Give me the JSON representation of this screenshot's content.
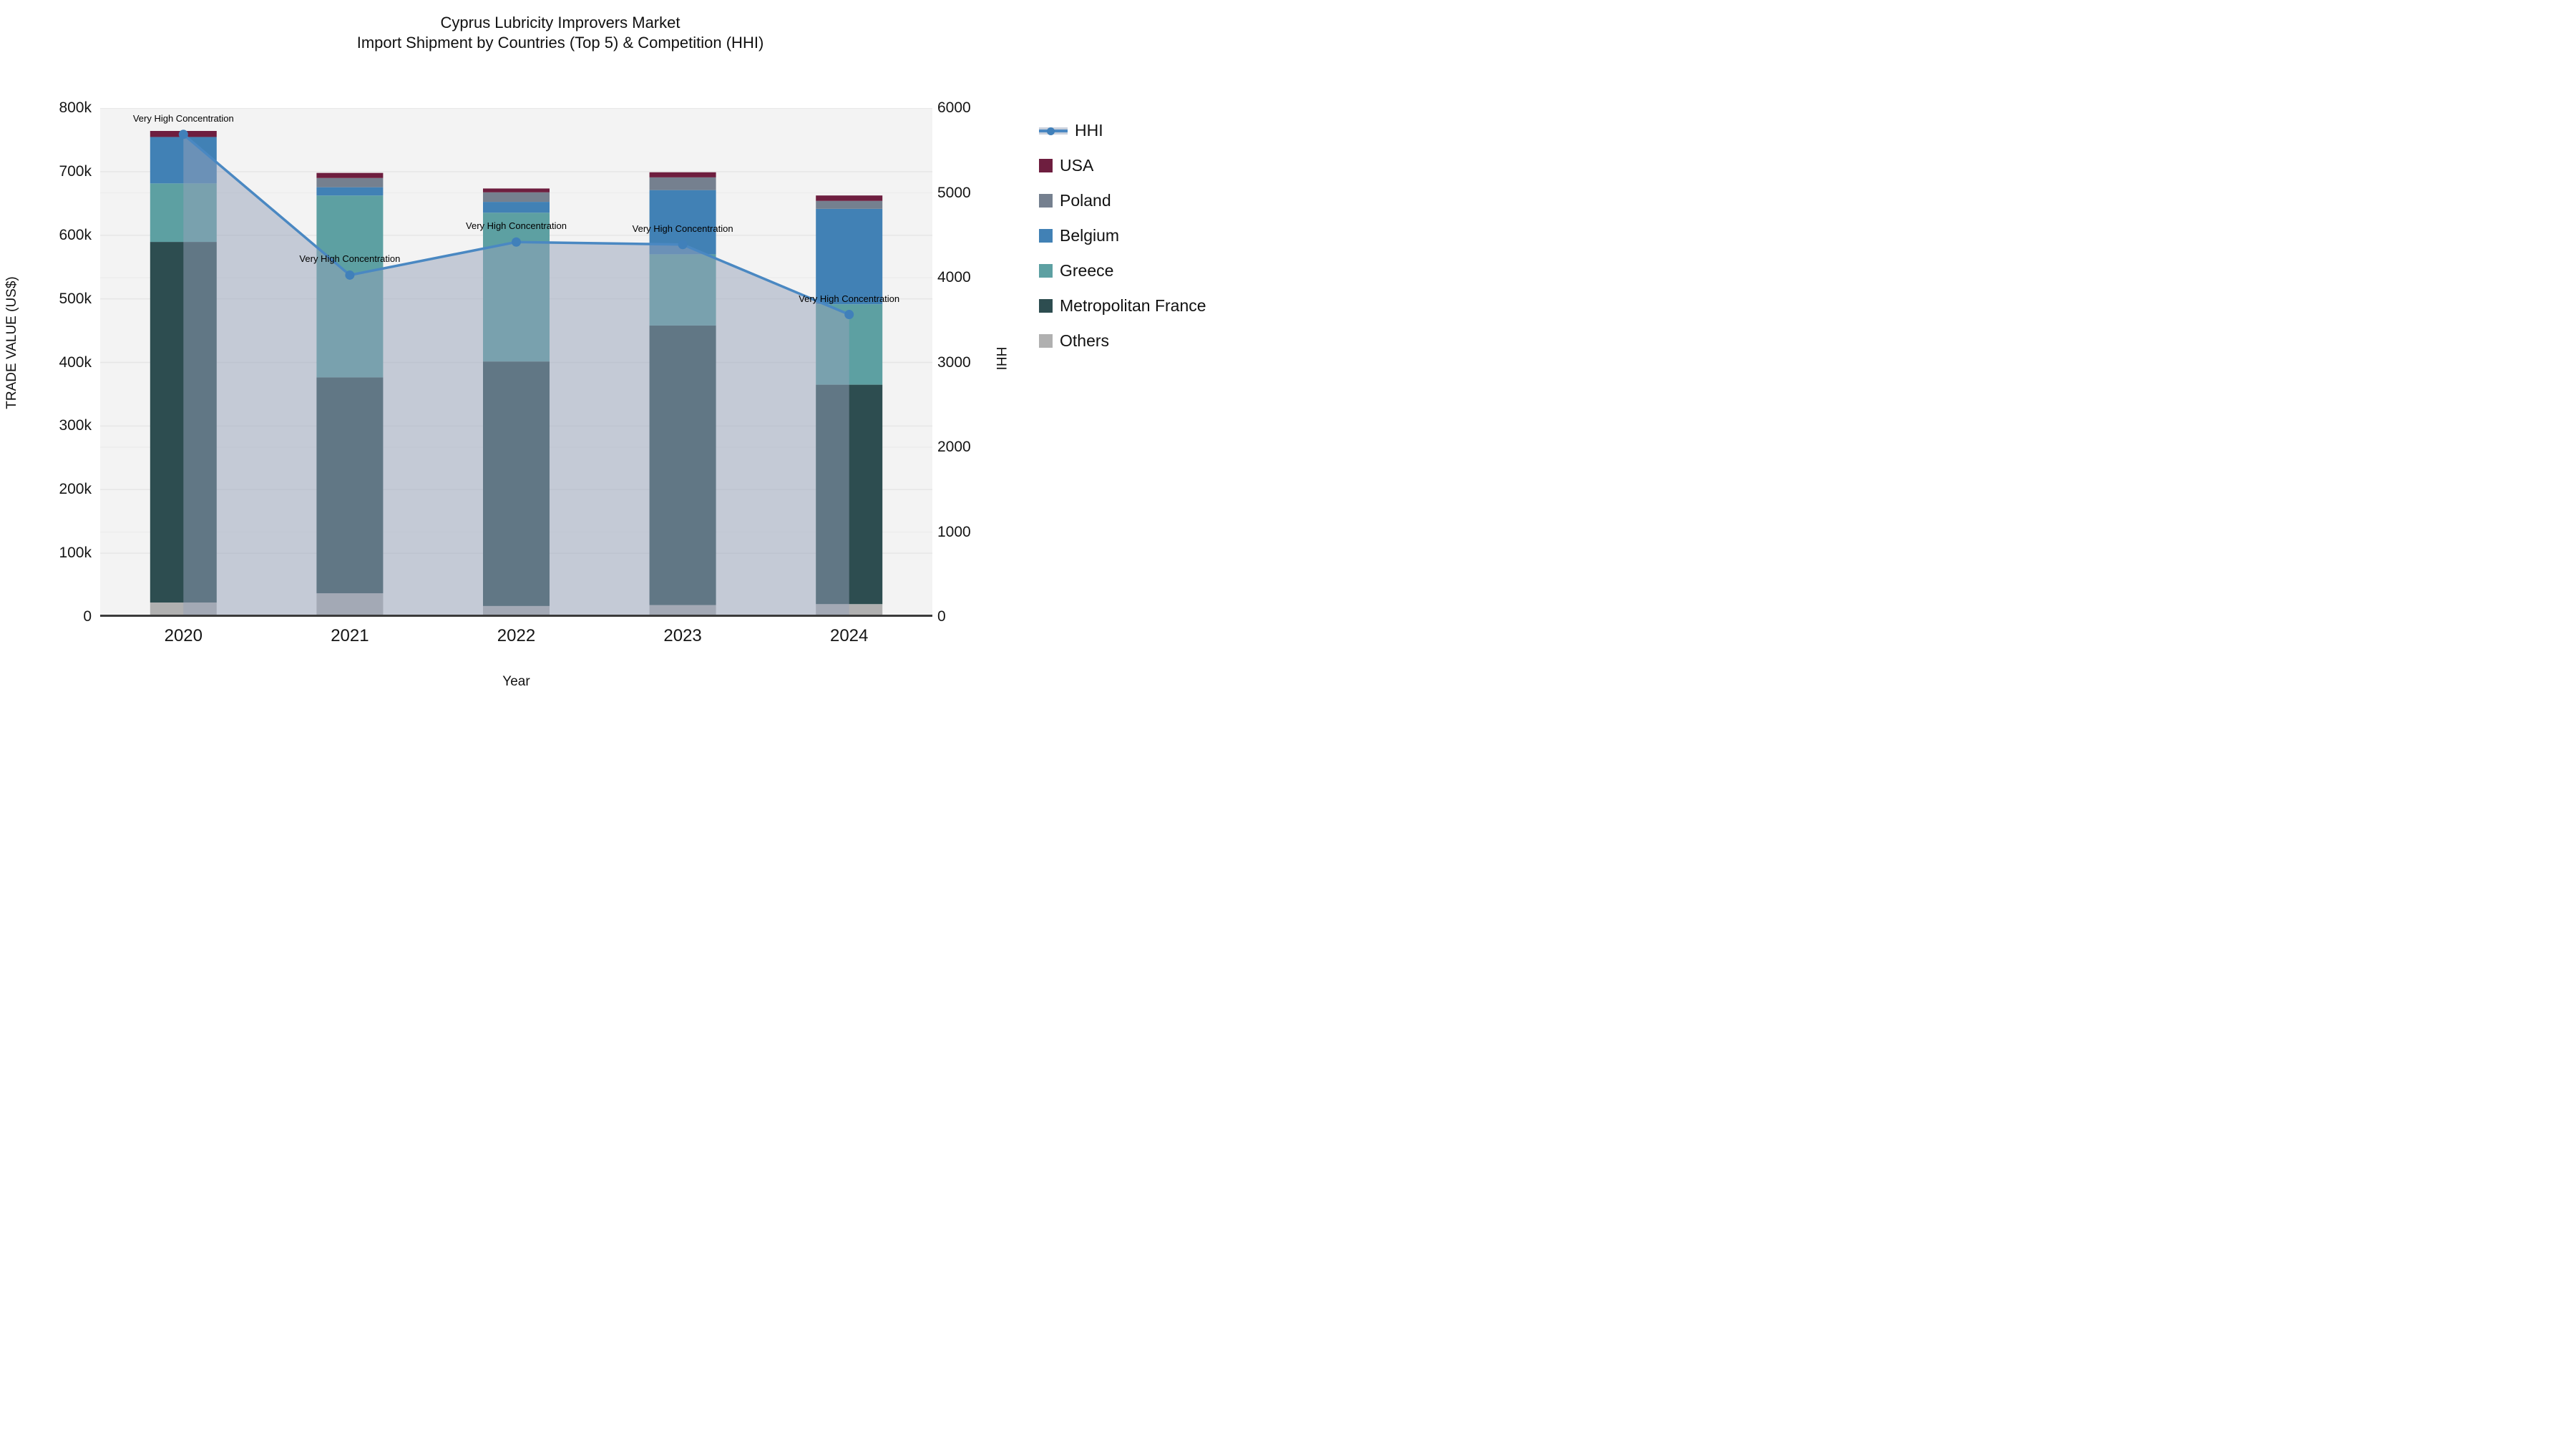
{
  "title": {
    "line1": "Cyprus Lubricity Improvers Market",
    "line2": "Import Shipment by Countries (Top 5) & Competition (HHI)"
  },
  "legend": {
    "items": [
      {
        "label": "HHI",
        "type": "line",
        "color": "#4a88c2"
      },
      {
        "label": "USA",
        "type": "square",
        "color": "#6e1e3f"
      },
      {
        "label": "Poland",
        "type": "square",
        "color": "#75808f"
      },
      {
        "label": "Belgium",
        "type": "square",
        "color": "#4181b5"
      },
      {
        "label": "Greece",
        "type": "square",
        "color": "#5da0a2"
      },
      {
        "label": "Metropolitan France",
        "type": "square",
        "color": "#2d4d50"
      },
      {
        "label": "Others",
        "type": "square",
        "color": "#b0b0b0"
      }
    ]
  },
  "chart_data": {
    "type": "combo",
    "bar_mode": "stacked",
    "categories": [
      "2020",
      "2021",
      "2022",
      "2023",
      "2024"
    ],
    "bar_series": [
      {
        "name": "Others",
        "color": "#b0b0b0",
        "values": [
          22500,
          37000,
          17000,
          18500,
          20000
        ]
      },
      {
        "name": "Metropolitan France",
        "color": "#2d4d50",
        "values": [
          567000,
          339500,
          384500,
          439500,
          345000
        ]
      },
      {
        "name": "Greece",
        "color": "#5da0a2",
        "values": [
          92000,
          286000,
          234000,
          112000,
          126500
        ]
      },
      {
        "name": "Belgium",
        "color": "#4181b5",
        "values": [
          73000,
          13000,
          17000,
          101000,
          150000
        ]
      },
      {
        "name": "Poland",
        "color": "#75808f",
        "values": [
          0,
          14500,
          15000,
          20000,
          12500
        ]
      },
      {
        "name": "USA",
        "color": "#6e1e3f",
        "values": [
          9500,
          8000,
          6000,
          8000,
          8500
        ]
      }
    ],
    "bar_totals": [
      764000,
      698000,
      673500,
      699000,
      662500
    ],
    "line_series": {
      "name": "HHI",
      "color": "#4a88c2",
      "marker_color": "#4080ba",
      "fill_color": "rgba(150,162,185,0.5)",
      "values": [
        5690,
        4030,
        4420,
        4390,
        3565
      ]
    },
    "annotations": [
      {
        "category": "2020",
        "text": "Very High Concentration"
      },
      {
        "category": "2021",
        "text": "Very High Concentration"
      },
      {
        "category": "2022",
        "text": "Very High Concentration"
      },
      {
        "category": "2023",
        "text": "Very High Concentration"
      },
      {
        "category": "2024",
        "text": "Very High Concentration"
      }
    ],
    "y_left": {
      "title": "TRADE VALUE (US$)",
      "range": [
        0,
        800000
      ],
      "ticks": [
        "0",
        "100k",
        "200k",
        "300k",
        "400k",
        "500k",
        "600k",
        "700k",
        "800k"
      ]
    },
    "y_right": {
      "title": "HHI",
      "range": [
        0,
        6000
      ],
      "ticks": [
        "0",
        "1000",
        "2000",
        "3000",
        "4000",
        "5000",
        "6000"
      ]
    },
    "x": {
      "title": "Year"
    },
    "grid": true,
    "plot_bg": "#f3f3f3",
    "legend_position": "right"
  }
}
